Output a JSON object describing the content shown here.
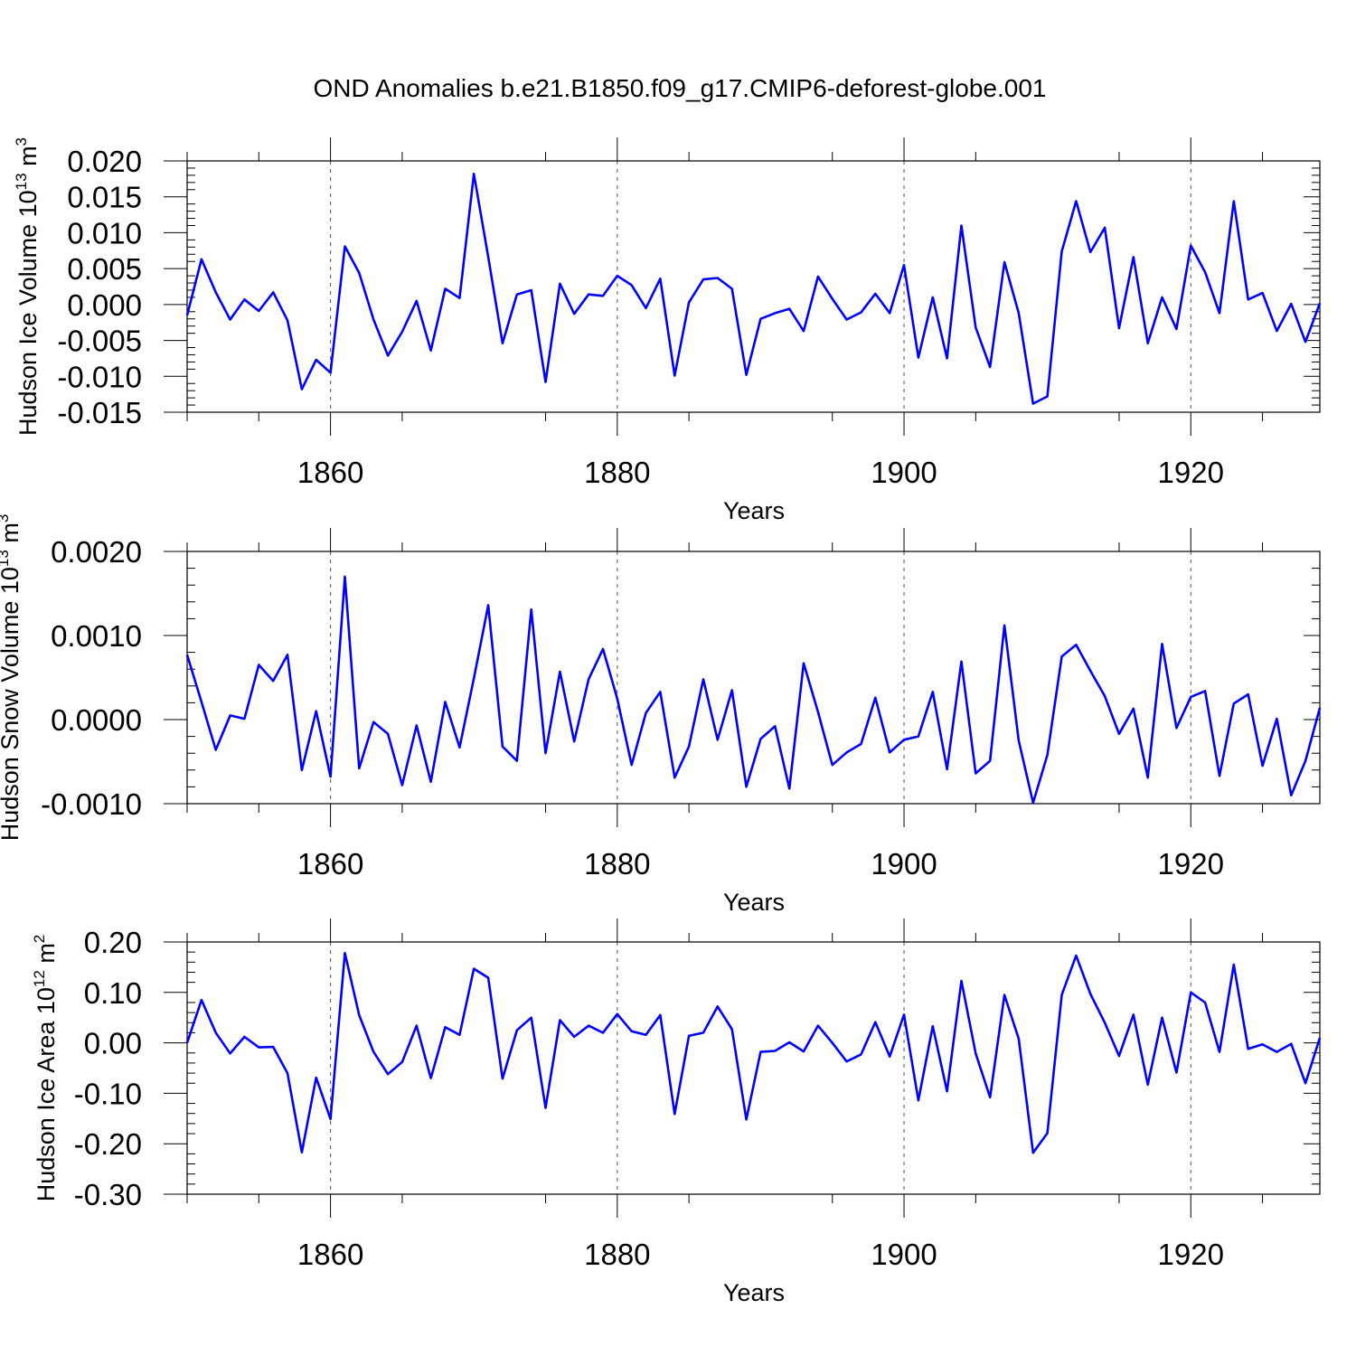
{
  "title": "OND Anomalies b.e21.B1850.f09_g17.CMIP6-deforest-globe.001",
  "colors": {
    "line": "#0000ff",
    "axis": "#000000",
    "grid": "#555555"
  },
  "chart_data": [
    {
      "type": "line",
      "ylabel": "Hudson Ice Volume 10",
      "ylabel_exp": "13",
      "ylabel_unit": " m",
      "ylabel_unit_exp": "3",
      "xlabel": "Years",
      "xlim": [
        1850,
        1929
      ],
      "ylim": [
        -0.015,
        0.02
      ],
      "yticks": [
        -0.015,
        -0.01,
        -0.005,
        0.0,
        0.005,
        0.01,
        0.015,
        0.02
      ],
      "ytick_labels": [
        "-0.015",
        "-0.010",
        "-0.005",
        "0.000",
        "0.005",
        "0.010",
        "0.015",
        "0.020"
      ],
      "xticks": [
        1860,
        1880,
        1900,
        1920
      ],
      "xtick_labels": [
        "1860",
        "1880",
        "1900",
        "1920"
      ],
      "x_start": 1850,
      "values": [
        -0.0015,
        0.0063,
        0.0017,
        -0.0021,
        0.0007,
        -0.0009,
        0.0017,
        -0.0022,
        -0.0118,
        -0.0077,
        -0.0095,
        0.0081,
        0.0044,
        -0.0021,
        -0.0071,
        -0.0038,
        0.0005,
        -0.0064,
        0.0022,
        0.0009,
        0.0182,
        0.0066,
        -0.0054,
        0.0014,
        0.002,
        -0.0108,
        0.0029,
        -0.0013,
        0.0014,
        0.0012,
        0.004,
        0.0027,
        -0.0005,
        0.0036,
        -0.0099,
        0.0003,
        0.0035,
        0.0037,
        0.0022,
        -0.0098,
        -0.002,
        -0.0012,
        -0.0006,
        -0.0037,
        0.0039,
        0.0008,
        -0.0021,
        -0.0011,
        0.0015,
        -0.0012,
        0.0055,
        -0.0074,
        0.001,
        -0.0075,
        0.011,
        -0.0032,
        -0.0087,
        0.0059,
        -0.0012,
        -0.0138,
        -0.0128,
        0.0074,
        0.0144,
        0.0073,
        0.0107,
        -0.0033,
        0.0066,
        -0.0054,
        0.001,
        -0.0034,
        0.0082,
        0.0045,
        -0.0012,
        0.0144,
        0.0007,
        0.0016,
        -0.0037,
        0.0001,
        -0.0052,
        0.0002
      ]
    },
    {
      "type": "line",
      "ylabel": "Hudson Snow Volume 10",
      "ylabel_exp": "13",
      "ylabel_unit": " m",
      "ylabel_unit_exp": "3",
      "xlabel": "Years",
      "xlim": [
        1850,
        1929
      ],
      "ylim": [
        -0.001,
        0.002
      ],
      "yticks": [
        -0.001,
        0.0,
        0.001,
        0.002
      ],
      "ytick_labels": [
        "-0.0010",
        "0.0000",
        "0.0010",
        "0.0020"
      ],
      "xticks": [
        1860,
        1880,
        1900,
        1920
      ],
      "xtick_labels": [
        "1860",
        "1880",
        "1900",
        "1920"
      ],
      "x_start": 1850,
      "values": [
        0.00077,
        0.00021,
        -0.00036,
        5e-05,
        1e-05,
        0.00065,
        0.00046,
        0.00077,
        -0.0006,
        0.0001,
        -0.00068,
        0.0017,
        -0.00058,
        -3e-05,
        -0.00017,
        -0.00078,
        -7e-05,
        -0.00074,
        0.00021,
        -0.00033,
        0.00049,
        0.00136,
        -0.00032,
        -0.00049,
        0.00131,
        -0.0004,
        0.00057,
        -0.00026,
        0.00048,
        0.00084,
        0.00025,
        -0.00054,
        8e-05,
        0.00033,
        -0.00069,
        -0.00032,
        0.00048,
        -0.00024,
        0.00035,
        -0.0008,
        -0.00023,
        -8e-05,
        -0.00082,
        0.00067,
        9e-05,
        -0.00054,
        -0.00039,
        -0.00029,
        0.00026,
        -0.00039,
        -0.00024,
        -0.0002,
        0.00033,
        -0.00059,
        0.00069,
        -0.00064,
        -0.00049,
        0.00112,
        -0.00025,
        -0.00099,
        -0.00042,
        0.00075,
        0.00089,
        0.00058,
        0.00028,
        -0.00017,
        0.00013,
        -0.00069,
        0.0009,
        -0.0001,
        0.00027,
        0.00034,
        -0.00067,
        0.00019,
        0.0003,
        -0.00055,
        1e-05,
        -0.0009,
        -0.00049,
        0.00014
      ]
    },
    {
      "type": "line",
      "ylabel": "Hudson Ice Area 10",
      "ylabel_exp": "12",
      "ylabel_unit": " m",
      "ylabel_unit_exp": "2",
      "xlabel": "Years",
      "xlim": [
        1850,
        1929
      ],
      "ylim": [
        -0.3,
        0.2
      ],
      "yticks": [
        -0.3,
        -0.2,
        -0.1,
        0.0,
        0.1,
        0.2
      ],
      "ytick_labels": [
        "-0.30",
        "-0.20",
        "-0.10",
        "0.00",
        "0.10",
        "0.20"
      ],
      "xticks": [
        1860,
        1880,
        1900,
        1920
      ],
      "xtick_labels": [
        "1860",
        "1880",
        "1900",
        "1920"
      ],
      "x_start": 1850,
      "values": [
        0.0,
        0.085,
        0.02,
        -0.021,
        0.012,
        -0.009,
        -0.008,
        -0.06,
        -0.217,
        -0.069,
        -0.151,
        0.178,
        0.055,
        -0.018,
        -0.062,
        -0.038,
        0.034,
        -0.07,
        0.031,
        0.016,
        0.147,
        0.129,
        -0.071,
        0.025,
        0.05,
        -0.129,
        0.045,
        0.012,
        0.034,
        0.02,
        0.057,
        0.023,
        0.016,
        0.055,
        -0.141,
        0.014,
        0.02,
        0.072,
        0.027,
        -0.152,
        -0.018,
        -0.016,
        0.001,
        -0.017,
        0.034,
        0.0,
        -0.037,
        -0.023,
        0.041,
        -0.027,
        0.056,
        -0.114,
        0.033,
        -0.096,
        0.123,
        -0.021,
        -0.108,
        0.095,
        0.008,
        -0.218,
        -0.179,
        0.095,
        0.173,
        0.097,
        0.04,
        -0.026,
        0.056,
        -0.083,
        0.05,
        -0.059,
        0.1,
        0.08,
        -0.018,
        0.155,
        -0.012,
        -0.003,
        -0.018,
        -0.002,
        -0.08,
        0.01
      ]
    }
  ]
}
